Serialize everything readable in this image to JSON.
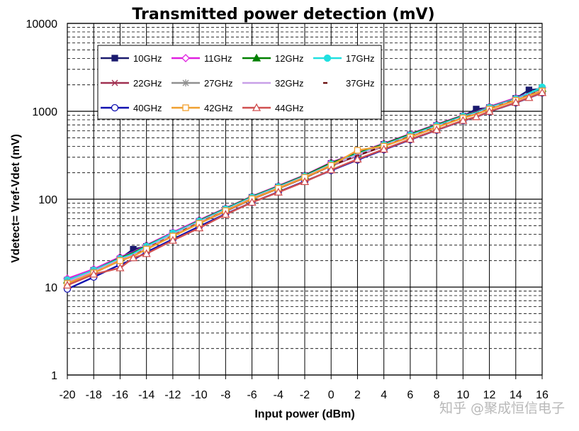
{
  "watermark": "知乎 @聚成恒信电子",
  "chart_data": {
    "type": "line",
    "title": "Transmitted power detection (mV)",
    "xlabel": "Input power (dBm)",
    "ylabel": "Vdetect= Vref-Vdet (mV)",
    "xlim": [
      -20,
      16
    ],
    "ylim": [
      1,
      10000
    ],
    "yscale": "log",
    "x_ticks": [
      -20,
      -18,
      -16,
      -14,
      -12,
      -10,
      -8,
      -6,
      -4,
      -2,
      0,
      2,
      4,
      6,
      8,
      10,
      12,
      14,
      16
    ],
    "y_ticks": [
      1,
      10,
      100,
      1000,
      10000
    ],
    "y_tick_labels": [
      "1",
      "10",
      "100",
      "1000",
      "10000"
    ],
    "grid": true,
    "legend_position": "top-left",
    "x": [
      -20,
      -18,
      -16,
      -15,
      -14,
      -12,
      -10,
      -8,
      -6,
      -4,
      -2,
      0,
      2,
      4,
      6,
      8,
      10,
      11,
      12,
      14,
      15,
      16
    ],
    "series": [
      {
        "name": "10GHz",
        "color": "#1a1a6e",
        "marker": "square",
        "filled": true,
        "dash": "",
        "values": [
          12,
          15.5,
          21,
          27,
          29,
          41,
          56,
          77,
          105,
          138,
          182,
          255,
          330,
          420,
          540,
          690,
          880,
          1060,
          1100,
          1400,
          1750,
          1800
        ]
      },
      {
        "name": "11GHz",
        "color": "#e020e0",
        "marker": "diamond",
        "filled": false,
        "dash": "",
        "values": [
          12.5,
          16,
          22,
          25,
          30,
          42,
          58,
          79,
          108,
          142,
          188,
          262,
          338,
          430,
          555,
          710,
          900,
          980,
          1130,
          1420,
          1600,
          1850
        ]
      },
      {
        "name": "12GHz",
        "color": "#008000",
        "marker": "triangle",
        "filled": true,
        "dash": "",
        "values": [
          12,
          15.5,
          21.5,
          24.5,
          29.5,
          41,
          57,
          78,
          107,
          140,
          186,
          258,
          334,
          425,
          548,
          700,
          890,
          970,
          1110,
          1390,
          1580,
          1820
        ]
      },
      {
        "name": "17GHz",
        "color": "#20e0e0",
        "marker": "circle",
        "filled": true,
        "dash": "",
        "values": [
          12,
          15.5,
          21,
          24,
          29,
          41,
          56,
          77,
          105,
          138,
          182,
          250,
          325,
          415,
          535,
          685,
          875,
          960,
          1100,
          1380,
          1600,
          1880
        ]
      },
      {
        "name": "22GHz",
        "color": "#a03050",
        "marker": "x",
        "filled": false,
        "dash": "",
        "values": [
          11,
          14.5,
          20,
          22.5,
          27,
          38,
          53,
          73,
          100,
          132,
          175,
          240,
          312,
          400,
          515,
          660,
          845,
          930,
          1060,
          1340,
          1520,
          1720
        ]
      },
      {
        "name": "27GHz",
        "color": "#909090",
        "marker": "star",
        "filled": false,
        "dash": "",
        "values": [
          11.5,
          15,
          20.5,
          23,
          28,
          39,
          54,
          74,
          102,
          134,
          178,
          244,
          318,
          405,
          520,
          665,
          850,
          935,
          1070,
          1350,
          1530,
          1740
        ]
      },
      {
        "name": "32GHz",
        "color": "#c8a0e8",
        "marker": "none",
        "filled": false,
        "dash": "",
        "values": [
          11.5,
          15,
          20.5,
          23,
          28,
          39.5,
          55,
          75,
          103,
          135,
          180,
          246,
          320,
          408,
          525,
          670,
          855,
          940,
          1075,
          1355,
          1535,
          1750
        ]
      },
      {
        "name": "37GHz",
        "color": "#6b1010",
        "marker": "none",
        "filled": false,
        "dash": "6,6",
        "values": [
          11,
          14.5,
          20,
          22.5,
          27.5,
          38.5,
          54,
          74,
          101,
          133,
          176,
          242,
          314,
          402,
          518,
          662,
          848,
          932,
          1065,
          1345,
          1525,
          1730
        ]
      },
      {
        "name": "40GHz",
        "color": "#1010b0",
        "marker": "circle",
        "filled": false,
        "dash": "",
        "values": [
          9.5,
          13,
          18,
          20.5,
          25,
          35,
          49,
          68,
          92,
          121,
          160,
          212,
          280,
          365,
          475,
          610,
          780,
          860,
          990,
          1250,
          1420,
          1620
        ]
      },
      {
        "name": "42GHz",
        "color": "#f0a030",
        "marker": "square",
        "filled": false,
        "dash": "",
        "values": [
          11,
          14.5,
          20,
          22.5,
          27,
          38,
          53,
          74,
          101,
          133,
          177,
          242,
          360,
          400,
          510,
          655,
          840,
          925,
          1055,
          1330,
          1510,
          1700
        ]
      },
      {
        "name": "44GHz",
        "color": "#d05050",
        "marker": "triangle",
        "filled": false,
        "dash": "",
        "values": [
          10.5,
          14,
          16.5,
          21.5,
          24,
          34,
          47,
          67,
          92,
          120,
          158,
          215,
          285,
          370,
          480,
          615,
          785,
          865,
          995,
          1260,
          1430,
          1630
        ]
      }
    ]
  }
}
